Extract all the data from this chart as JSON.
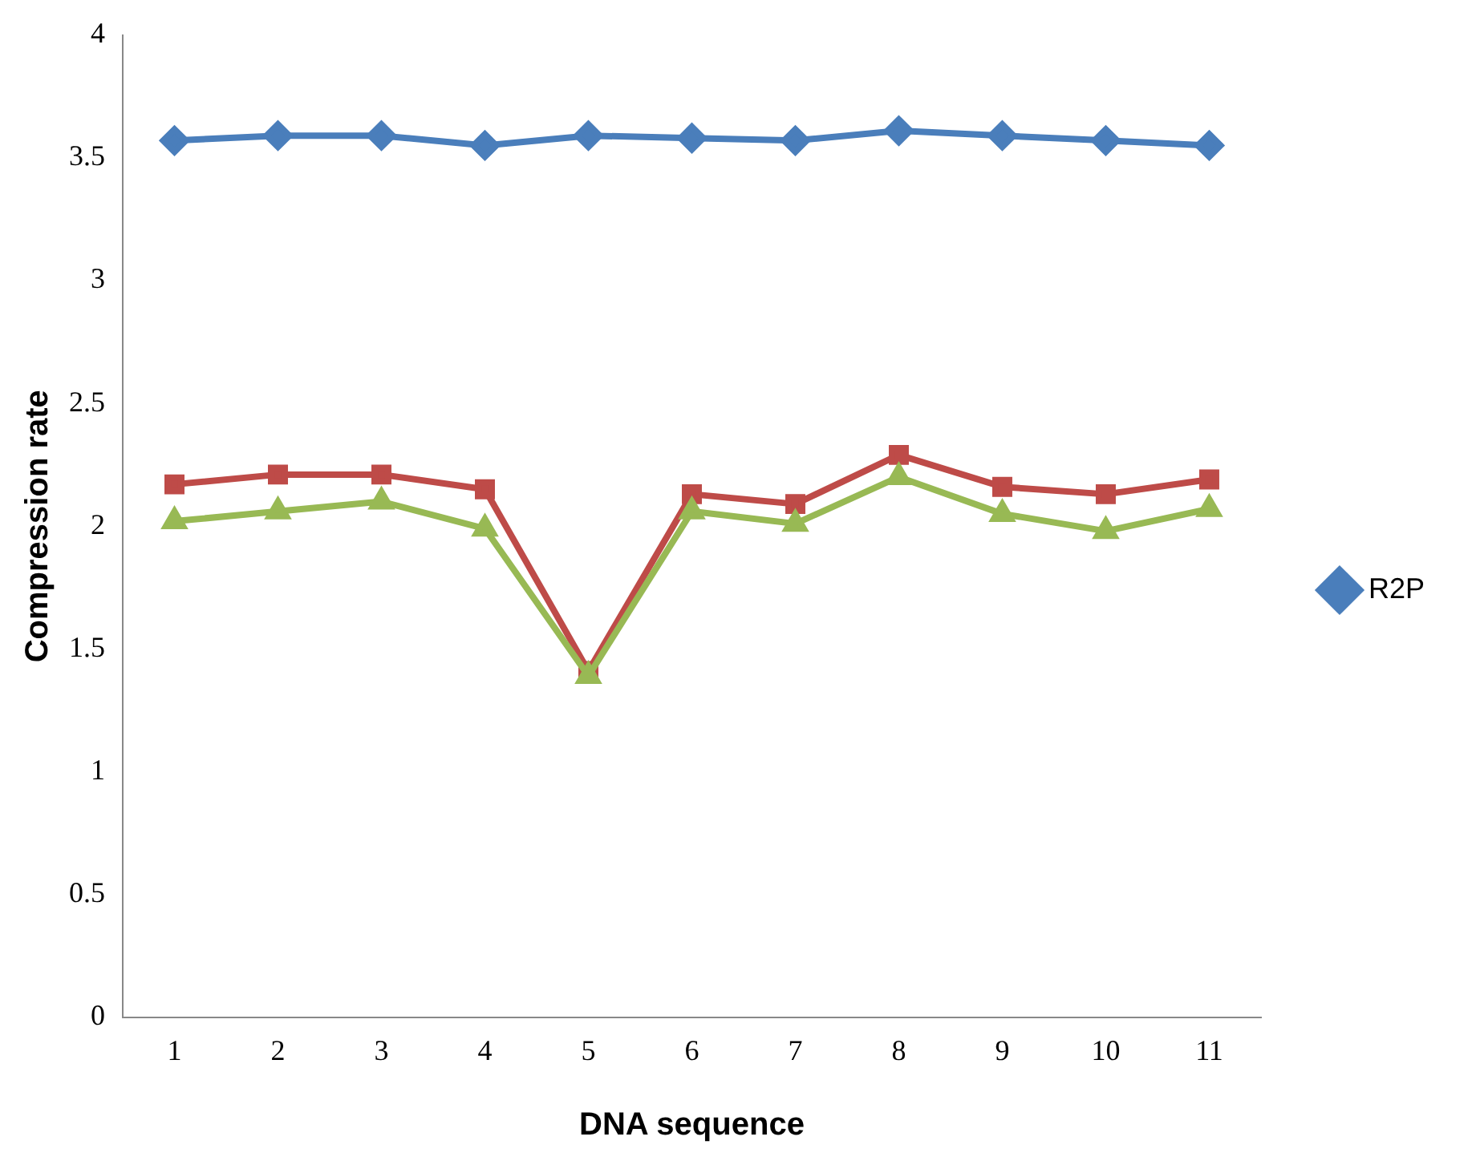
{
  "chart_data": {
    "type": "line",
    "xlabel": "DNA sequence",
    "ylabel": "Compression rate",
    "categories": [
      "1",
      "2",
      "3",
      "4",
      "5",
      "6",
      "7",
      "8",
      "9",
      "10",
      "11"
    ],
    "ylim": [
      0,
      4
    ],
    "yticks": [
      0,
      0.5,
      1,
      1.5,
      2,
      2.5,
      3,
      3.5,
      4
    ],
    "grid": false,
    "legend": "right",
    "line_style": "solid",
    "series": [
      {
        "name": "R2P",
        "color": "#4a7ebb",
        "marker": "diamond",
        "values": [
          3.57,
          3.59,
          3.59,
          3.55,
          3.59,
          3.58,
          3.57,
          3.61,
          3.59,
          3.57,
          3.55
        ]
      },
      {
        "color": "#be4b48",
        "marker": "square",
        "values": [
          2.17,
          2.21,
          2.21,
          2.15,
          1.41,
          2.13,
          2.09,
          2.29,
          2.16,
          2.13,
          2.19
        ]
      },
      {
        "color": "#98b954",
        "marker": "triangle",
        "values": [
          2.02,
          2.06,
          2.1,
          1.99,
          1.39,
          2.06,
          2.01,
          2.2,
          2.05,
          1.98,
          2.07
        ]
      }
    ]
  }
}
